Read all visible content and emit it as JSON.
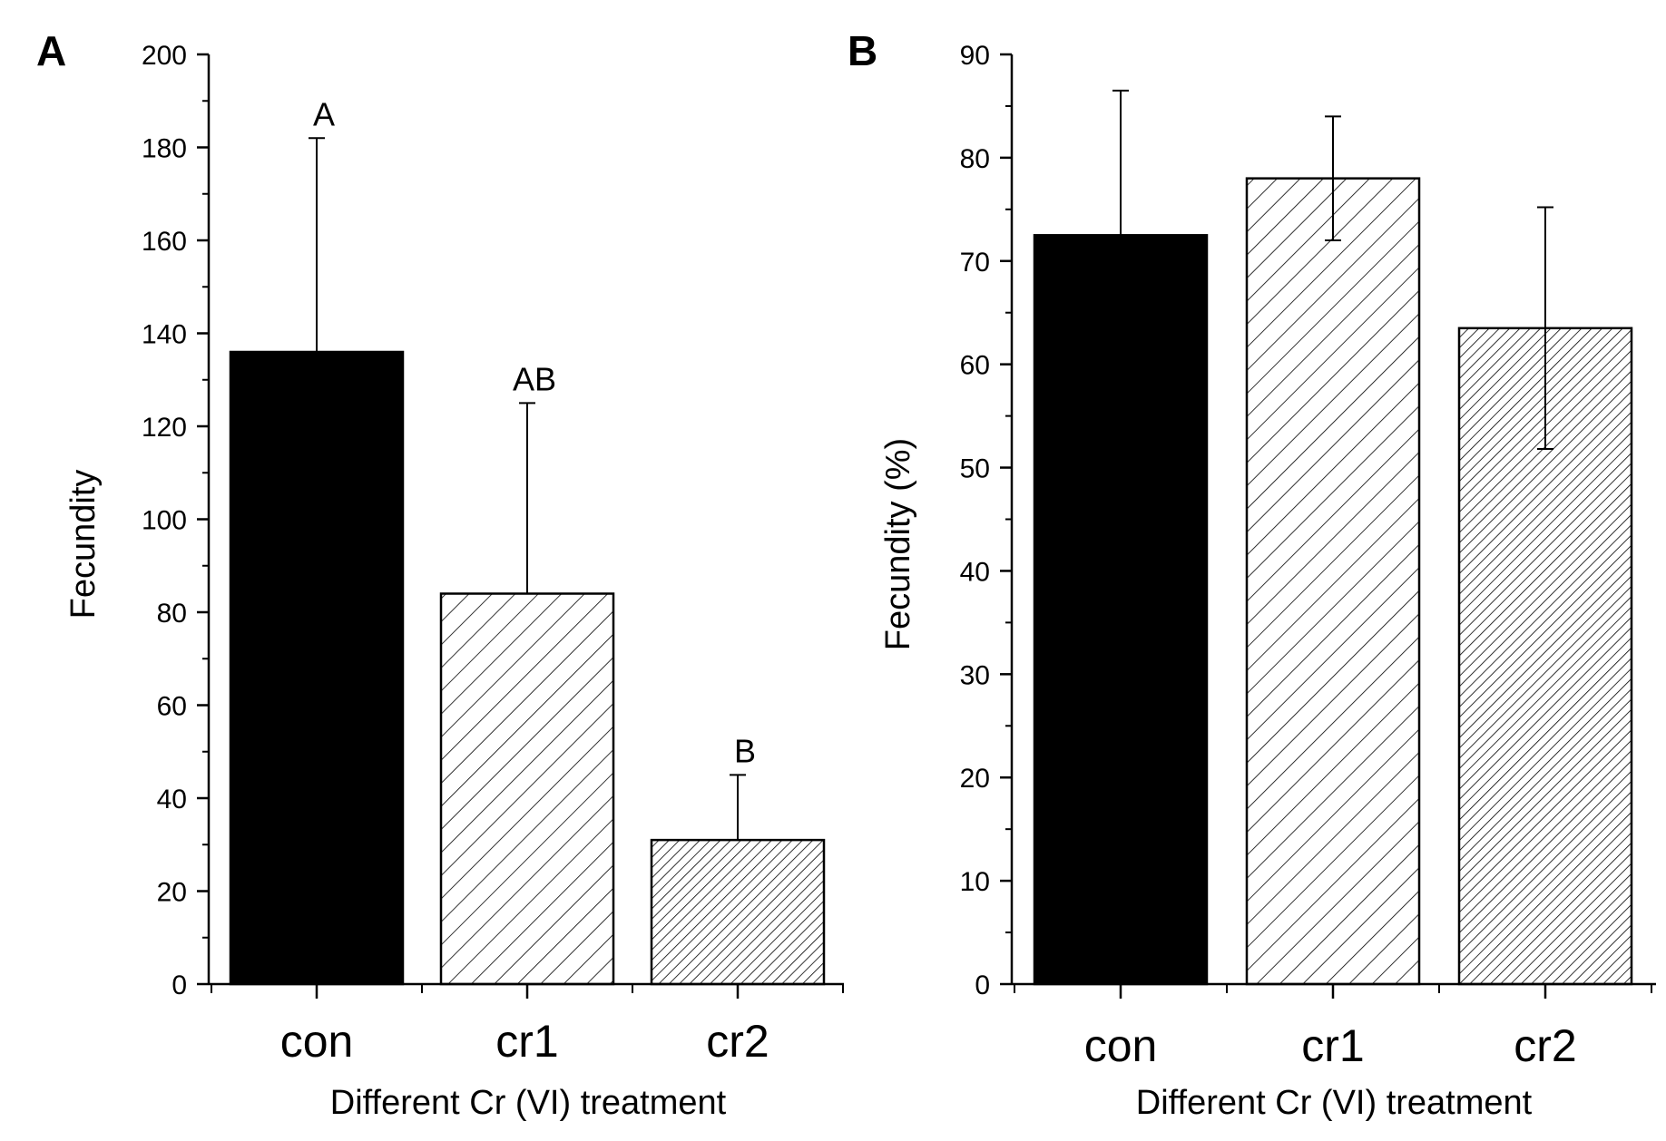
{
  "chart_data": [
    {
      "type": "bar",
      "panel_label": "A",
      "categories": [
        "con",
        "cr1",
        "cr2"
      ],
      "values": [
        136,
        84,
        31
      ],
      "error_plus": [
        46,
        41,
        14
      ],
      "error_style": "upper-only",
      "significance": [
        "A",
        "AB",
        "B"
      ],
      "fills": [
        "solid",
        "hatch-sparse",
        "hatch-dense"
      ],
      "xlabel": "Different Cr (VI) treatment",
      "ylabel": "Fecundity",
      "ylim": [
        0,
        200
      ],
      "yticks": [
        0,
        20,
        40,
        60,
        80,
        100,
        120,
        140,
        160,
        180,
        200
      ],
      "minor_ticks": true,
      "grid": false,
      "bar_color": "#000000"
    },
    {
      "type": "bar",
      "panel_label": "B",
      "categories": [
        "con",
        "cr1",
        "cr2"
      ],
      "values": [
        72.5,
        78,
        63.5
      ],
      "error_plus": [
        14,
        6,
        11.7
      ],
      "error_minus": [
        14,
        6,
        11.7
      ],
      "error_style": "both",
      "fills": [
        "solid",
        "hatch-sparse",
        "hatch-dense"
      ],
      "xlabel": "Different Cr (VI) treatment",
      "ylabel": "Fecundity (%)",
      "ylim": [
        0,
        90
      ],
      "yticks": [
        0,
        10,
        20,
        30,
        40,
        50,
        60,
        70,
        80,
        90
      ],
      "minor_ticks": true,
      "grid": false,
      "bar_color": "#000000"
    }
  ]
}
